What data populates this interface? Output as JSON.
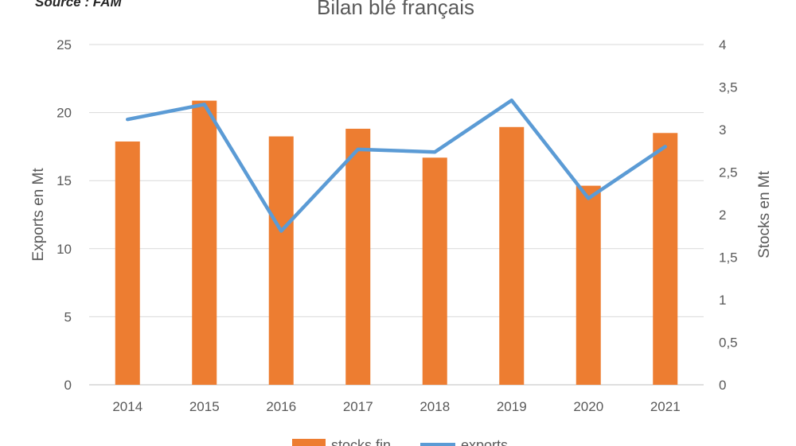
{
  "chart_data": {
    "type": "bar",
    "title": "Bilan blé français",
    "source": "Source : FAM",
    "categories": [
      "2014",
      "2015",
      "2016",
      "2017",
      "2018",
      "2019",
      "2020",
      "2021"
    ],
    "series": [
      {
        "name": "stocks fin",
        "type": "bar",
        "axis": "right",
        "color": "#ED7D31",
        "values": [
          2.86,
          3.34,
          2.92,
          3.01,
          2.67,
          3.03,
          2.34,
          2.96
        ]
      },
      {
        "name": "exports",
        "type": "line",
        "axis": "left",
        "color": "#5B9BD5",
        "values": [
          19.5,
          20.6,
          11.3,
          17.3,
          17.1,
          20.9,
          13.7,
          17.5
        ]
      }
    ],
    "ylabel_left": "Exports en Mt",
    "ylim_left": [
      0,
      25
    ],
    "yticks_left": [
      "0",
      "5",
      "10",
      "15",
      "20",
      "25"
    ],
    "ylabel_right": "Stocks en Mt",
    "ylim_right": [
      0,
      4
    ],
    "yticks_right": [
      "0",
      "0,5",
      "1",
      "1,5",
      "2",
      "2,5",
      "3",
      "3,5",
      "4"
    ],
    "grid": true,
    "legend_position": "bottom"
  }
}
